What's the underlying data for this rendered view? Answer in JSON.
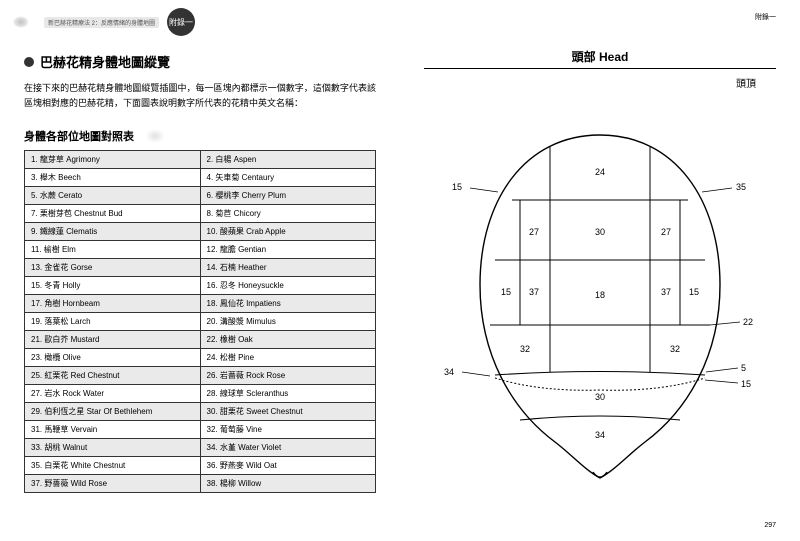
{
  "left": {
    "breadcrumb": "新巴赫花精療法 2：反應情緒的身體地圖",
    "appendix": "附錄一",
    "title": "巴赫花精身體地圖縱覽",
    "intro": "在接下來的巴赫花精身體地圖縱覽插圖中，每一區塊內都標示一個數字，這個數字代表該區塊相對應的巴赫花精，下面圖表說明數字所代表的花精中英文名稱：",
    "subtitle": "身體各部位地圖對照表",
    "rows": [
      [
        "1. 龍芽草 Agrimony",
        "2. 白楊 Aspen"
      ],
      [
        "3. 櫸木 Beech",
        "4. 矢車菊 Centaury"
      ],
      [
        "5. 水蕨 Cerato",
        "6. 櫻桃李 Cherry Plum"
      ],
      [
        "7. 栗樹芽苞 Chestnut Bud",
        "8. 菊苣 Chicory"
      ],
      [
        "9. 鐵線蓮 Clematis",
        "10. 酸蘋果 Crab Apple"
      ],
      [
        "11. 榆樹 Elm",
        "12. 龍膽 Gentian"
      ],
      [
        "13. 金雀花 Gorse",
        "14. 石楠 Heather"
      ],
      [
        "15. 冬青 Holly",
        "16. 忍冬 Honeysuckle"
      ],
      [
        "17. 角樹 Hornbeam",
        "18. 鳳仙花 Impatiens"
      ],
      [
        "19. 落葉松 Larch",
        "20. 溝酸漿 Mimulus"
      ],
      [
        "21. 歐白芥 Mustard",
        "22. 橡樹 Oak"
      ],
      [
        "23. 橄欖 Olive",
        "24. 松樹 Pine"
      ],
      [
        "25. 紅栗花 Red Chestnut",
        "26. 岩薔薇 Rock Rose"
      ],
      [
        "27. 岩水 Rock Water",
        "28. 線球草 Scleranthus"
      ],
      [
        "29. 伯利恆之星 Star Of Bethlehem",
        "30. 甜栗花 Sweet Chestnut"
      ],
      [
        "31. 馬鞭草 Vervain",
        "32. 葡萄藤 Vine"
      ],
      [
        "33. 胡桃 Walnut",
        "34. 水堇 Water Violet"
      ],
      [
        "35. 白栗花 White Chestnut",
        "36. 野燕麥 Wild Oat"
      ],
      [
        "37. 野薔薇 Wild Rose",
        "38. 楊柳 Willow"
      ]
    ]
  },
  "right": {
    "header": "附錄一",
    "section": "頭部 Head",
    "sub": "頭頂",
    "pageNum": "297",
    "diagram": {
      "stroke": "#000",
      "fill": "#fff",
      "regions": {
        "r24": "24",
        "r30t": "30",
        "r27l": "27",
        "r27r": "27",
        "r15l": "15",
        "r15r": "15",
        "r37l": "37",
        "r37r": "37",
        "r18": "18",
        "r32l": "32",
        "r32r": "32",
        "r30b": "30",
        "r34b": "34"
      },
      "labels": {
        "l15l": "15",
        "l35r": "35",
        "l34l": "34",
        "l22r": "22",
        "l5r": "5",
        "l15br": "15"
      }
    }
  }
}
